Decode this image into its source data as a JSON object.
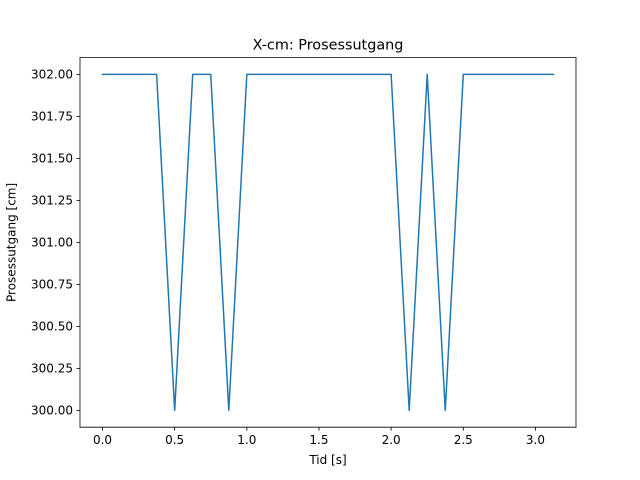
{
  "chart_data": {
    "type": "line",
    "title": "X-cm: Prosessutgang",
    "xlabel": "Tid [s]",
    "ylabel": "Prosessutgang [cm]",
    "xlim": [
      -0.156,
      3.281
    ],
    "ylim": [
      299.9,
      302.1
    ],
    "xticks": [
      0.0,
      0.5,
      1.0,
      1.5,
      2.0,
      2.5,
      3.0
    ],
    "xtick_labels": [
      "0.0",
      "0.5",
      "1.0",
      "1.5",
      "2.0",
      "2.5",
      "3.0"
    ],
    "yticks": [
      300.0,
      300.25,
      300.5,
      300.75,
      301.0,
      301.25,
      301.5,
      301.75,
      302.0
    ],
    "ytick_labels": [
      "300.00",
      "300.25",
      "300.50",
      "300.75",
      "301.00",
      "301.25",
      "301.50",
      "301.75",
      "302.00"
    ],
    "grid": false,
    "series": [
      {
        "color": "#1f77b4",
        "x": [
          0.0,
          0.125,
          0.25,
          0.375,
          0.5,
          0.625,
          0.75,
          0.875,
          1.0,
          1.125,
          1.25,
          1.375,
          1.5,
          1.625,
          1.75,
          1.875,
          2.0,
          2.125,
          2.25,
          2.375,
          2.5,
          2.625,
          2.75,
          2.875,
          3.0,
          3.125
        ],
        "y": [
          302,
          302,
          302,
          302,
          300,
          302,
          302,
          300,
          302,
          302,
          302,
          302,
          302,
          302,
          302,
          302,
          302,
          300,
          302,
          300,
          302,
          302,
          302,
          302,
          302,
          302
        ]
      }
    ]
  }
}
